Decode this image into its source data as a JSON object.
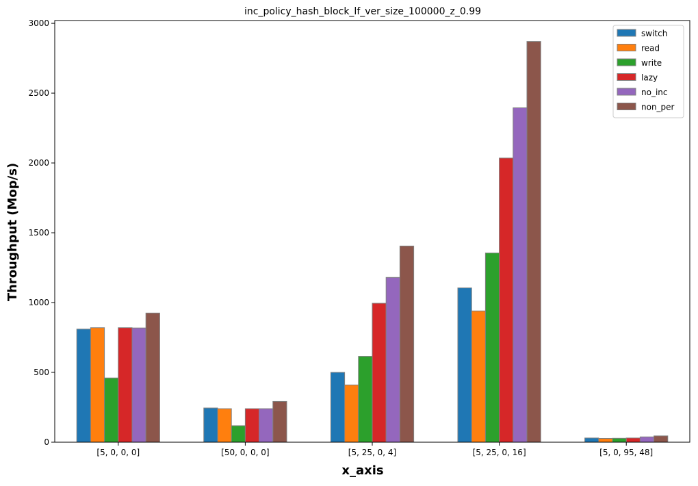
{
  "chart_data": {
    "type": "bar",
    "title": "inc_policy_hash_block_lf_ver_size_100000_z_0.99",
    "xlabel": "x_axis",
    "ylabel": "Throughput (Mop/s)",
    "ylim": [
      0,
      3020
    ],
    "yticks": [
      0,
      500,
      1000,
      1500,
      2000,
      2500,
      3000
    ],
    "categories": [
      "[5, 0, 0, 0]",
      "[50, 0, 0, 0]",
      "[5, 25, 0, 4]",
      "[5, 25, 0, 16]",
      "[5, 0, 95, 48]"
    ],
    "grid": false,
    "legend_position": "top-right",
    "series": [
      {
        "name": "switch",
        "color": "#1f77b4",
        "values": [
          810,
          245,
          500,
          1105,
          30
        ]
      },
      {
        "name": "read",
        "color": "#ff7f0e",
        "values": [
          820,
          240,
          410,
          940,
          27
        ]
      },
      {
        "name": "write",
        "color": "#2ca02c",
        "values": [
          460,
          118,
          615,
          1355,
          28
        ]
      },
      {
        "name": "lazy",
        "color": "#d62728",
        "values": [
          820,
          240,
          995,
          2035,
          30
        ]
      },
      {
        "name": "no_inc",
        "color": "#9467bd",
        "values": [
          818,
          240,
          1180,
          2395,
          38
        ]
      },
      {
        "name": "non_per",
        "color": "#8c564b",
        "values": [
          925,
          292,
          1405,
          2870,
          45
        ]
      }
    ]
  }
}
